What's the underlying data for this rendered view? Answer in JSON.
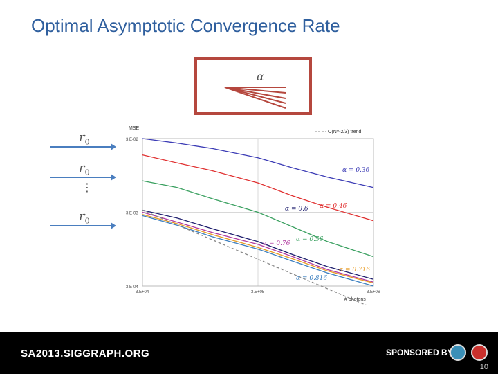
{
  "slide": {
    "title": "Optimal Asymptotic Convergence Rate",
    "alpha_symbol": "α",
    "r0_labels": [
      "r",
      "r",
      "r"
    ],
    "r0_subscript": "0",
    "ellipsis": "⋮",
    "page_number": "10"
  },
  "footer": {
    "left_text": "SA2013.SIGGRAPH.ORG",
    "sponsored": "SPONSORED BY",
    "logo_icons": [
      "acm-siggraph-logo",
      "sponsor-logo"
    ]
  },
  "chart_data": {
    "type": "line",
    "xlabel": "# photons",
    "ylabel": "MSE",
    "xscale": "log",
    "yscale": "log",
    "xlim": [
      30000,
      3000000
    ],
    "ylim": [
      0.0003,
      0.03
    ],
    "x_ticks": [
      "3.E+04",
      "3.E+05",
      "3.E+06"
    ],
    "y_ticks": [
      "3.E-02",
      "3.E-03",
      "3.E-04"
    ],
    "grid": true,
    "legend": {
      "placement": "top-right",
      "entries": [
        "O(N^-2/3) trend"
      ]
    },
    "series": [
      {
        "label": "α = 0.36",
        "color": "#3b3bb5",
        "points": [
          [
            30000,
            0.03
          ],
          [
            60000,
            0.026
          ],
          [
            120000,
            0.022
          ],
          [
            300000,
            0.0165
          ],
          [
            600000,
            0.012
          ],
          [
            1200000,
            0.009
          ],
          [
            3000000,
            0.0065
          ]
        ]
      },
      {
        "label": "α = 0.46",
        "color": "#e03030",
        "points": [
          [
            30000,
            0.018
          ],
          [
            60000,
            0.014
          ],
          [
            120000,
            0.011
          ],
          [
            300000,
            0.0075
          ],
          [
            600000,
            0.005
          ],
          [
            1200000,
            0.0035
          ],
          [
            3000000,
            0.0023
          ]
        ]
      },
      {
        "label": "α = 0.56",
        "color": "#3aa060",
        "points": [
          [
            30000,
            0.008
          ],
          [
            60000,
            0.0065
          ],
          [
            120000,
            0.0046
          ],
          [
            300000,
            0.003
          ],
          [
            600000,
            0.0019
          ],
          [
            1200000,
            0.0012
          ],
          [
            3000000,
            0.00075
          ]
        ]
      },
      {
        "label": "α = 0.6",
        "color": "#1e1e6e",
        "points": [
          [
            30000,
            0.0032
          ],
          [
            60000,
            0.0025
          ],
          [
            120000,
            0.0018
          ],
          [
            300000,
            0.0012
          ],
          [
            600000,
            0.0008
          ],
          [
            1200000,
            0.00055
          ],
          [
            3000000,
            0.00037
          ]
        ]
      },
      {
        "label": "α = 0.76",
        "color": "#b03aa0",
        "points": [
          [
            30000,
            0.003
          ],
          [
            60000,
            0.0022
          ],
          [
            120000,
            0.0016
          ],
          [
            300000,
            0.0011
          ],
          [
            600000,
            0.00075
          ],
          [
            1200000,
            0.0005
          ],
          [
            3000000,
            0.00034
          ]
        ]
      },
      {
        "label": "α = 0.716",
        "color": "#e89a20",
        "points": [
          [
            30000,
            0.0028
          ],
          [
            60000,
            0.0021
          ],
          [
            120000,
            0.0015
          ],
          [
            300000,
            0.001
          ],
          [
            600000,
            0.0007
          ],
          [
            1200000,
            0.00048
          ],
          [
            3000000,
            0.00033
          ]
        ]
      },
      {
        "label": "α = 0.816",
        "color": "#3b7fc0",
        "points": [
          [
            30000,
            0.0027
          ],
          [
            60000,
            0.002
          ],
          [
            120000,
            0.0014
          ],
          [
            300000,
            0.00095
          ],
          [
            600000,
            0.00065
          ],
          [
            1200000,
            0.00045
          ],
          [
            3000000,
            0.0003
          ]
        ]
      },
      {
        "label": "",
        "color": "#888888",
        "dashed": true,
        "points": [
          [
            30000,
            0.0032
          ],
          [
            3000000,
            0.00015
          ]
        ]
      }
    ]
  }
}
